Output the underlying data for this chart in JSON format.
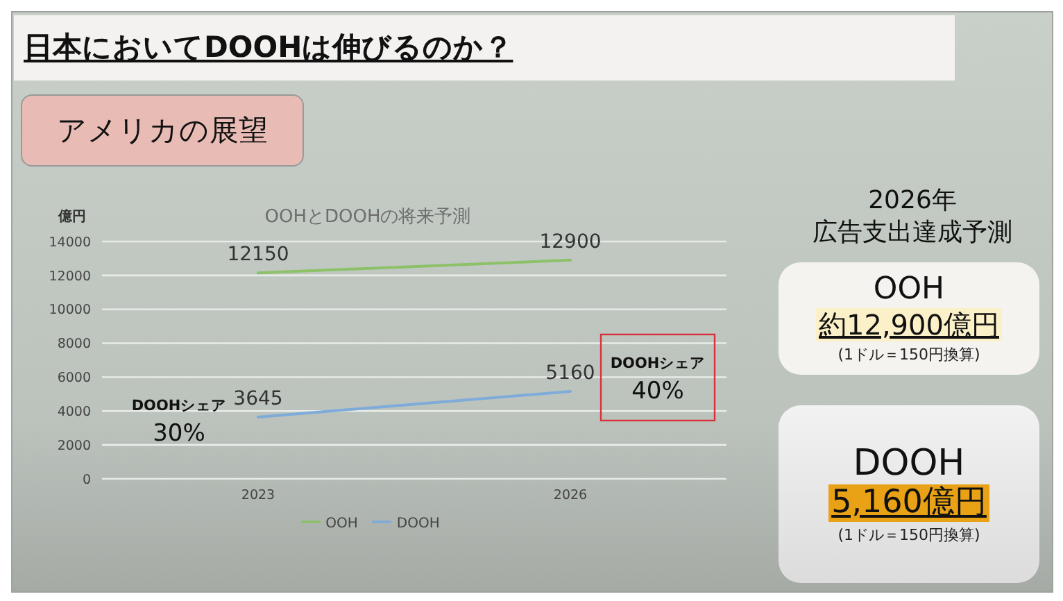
{
  "chart_data": [
    {
      "type": "other",
      "title": "日本においてDOOHは伸びるのか？",
      "subtitle": "アメリカの展望"
    },
    {
      "type": "line",
      "title": "OOHとDOOHの将来予測",
      "ylabel": "億円",
      "categories": [
        "2023",
        "2026"
      ],
      "series": [
        {
          "name": "OOH",
          "color": "#8cc168",
          "values": [
            12150,
            12900
          ]
        },
        {
          "name": "DOOH",
          "color": "#7eabd9",
          "values": [
            3645,
            5160
          ]
        }
      ],
      "ylim": [
        0,
        14000
      ],
      "yticks": [
        0,
        2000,
        4000,
        6000,
        8000,
        10000,
        12000,
        14000
      ],
      "grid": "y",
      "legend": "bottom",
      "marker": "none",
      "data_labels": true,
      "annotations": [
        {
          "text": "DOOHシェア\n30%",
          "x": "2023",
          "y": 3645
        },
        {
          "text": "DOOHシェア\n40%",
          "x": "2026",
          "y": 5160
        }
      ]
    },
    {
      "type": "other",
      "title": "2026年",
      "subtitle": "広告支出達成予測",
      "annotations": [
        "OOH",
        "約12,900億円",
        "(1ドル＝150円換算)",
        "DOOH",
        "5,160億円",
        "(1ドル＝150円換算)"
      ]
    }
  ]
}
